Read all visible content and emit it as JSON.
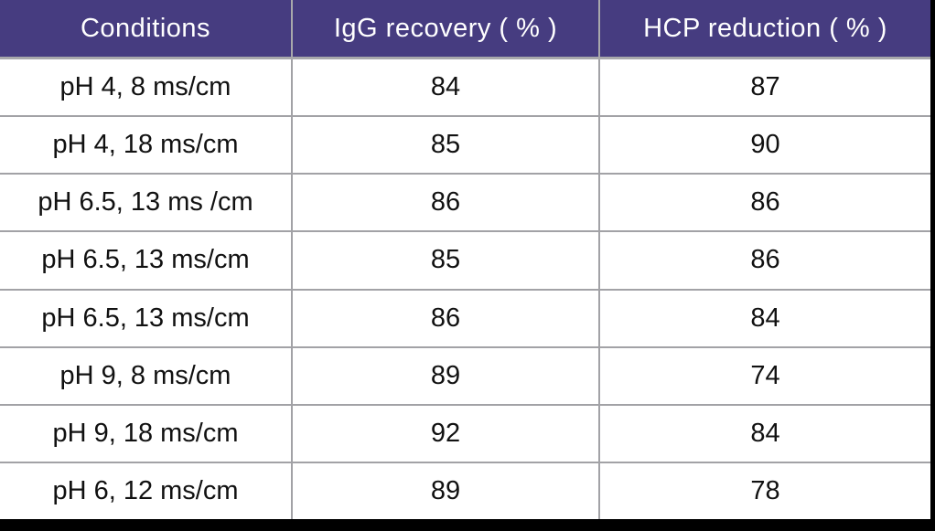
{
  "chart_data": {
    "type": "table",
    "title": "",
    "columns": [
      "Conditions",
      "IgG recovery ( % )",
      "HCP reduction ( % )"
    ],
    "rows": [
      [
        "pH 4, 8 ms/cm",
        84,
        87
      ],
      [
        "pH 4, 18 ms/cm",
        85,
        90
      ],
      [
        "pH 6.5, 13 ms /cm",
        86,
        86
      ],
      [
        "pH 6.5, 13 ms/cm",
        85,
        86
      ],
      [
        "pH 6.5, 13 ms/cm",
        86,
        84
      ],
      [
        "pH 9, 8 ms/cm",
        89,
        74
      ],
      [
        "pH 9, 18 ms/cm",
        92,
        84
      ],
      [
        "pH 6, 12 ms/cm",
        89,
        78
      ]
    ]
  },
  "colors": {
    "header_bg": "#463c80",
    "header_text": "#ffffff",
    "grid_line": "#a2a2a6",
    "frame": "#000000",
    "body_text": "#111111",
    "background": "#ffffff"
  }
}
